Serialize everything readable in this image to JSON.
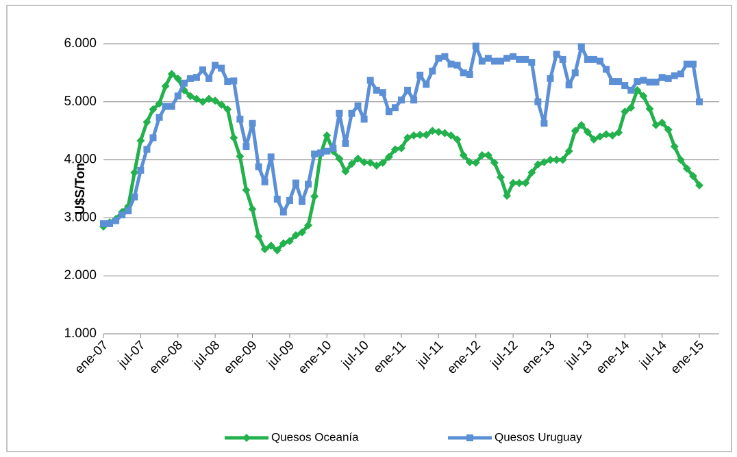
{
  "chart_data": {
    "type": "line",
    "y_label": "U$S/Ton",
    "categories": [
      "ene-07",
      null,
      null,
      null,
      null,
      null,
      "jul-07",
      null,
      null,
      null,
      null,
      null,
      "ene-08",
      null,
      null,
      null,
      null,
      null,
      "jul-08",
      null,
      null,
      null,
      null,
      null,
      "ene-09",
      null,
      null,
      null,
      null,
      null,
      "jul-09",
      null,
      null,
      null,
      null,
      null,
      "ene-10",
      null,
      null,
      null,
      null,
      null,
      "jul-10",
      null,
      null,
      null,
      null,
      null,
      "ene-11",
      null,
      null,
      null,
      null,
      null,
      "jul-11",
      null,
      null,
      null,
      null,
      null,
      "ene-12",
      null,
      null,
      null,
      null,
      null,
      "jul-12",
      null,
      null,
      null,
      null,
      null,
      "ene-13",
      null,
      null,
      null,
      null,
      null,
      "jul-13",
      null,
      null,
      null,
      null,
      null,
      "ene-14",
      null,
      null,
      null,
      null,
      null,
      "jul-14",
      null,
      null,
      null,
      null,
      null,
      "ene-15"
    ],
    "series": [
      {
        "name": "Quesos Oceanía",
        "color": "#22b14c",
        "marker": "diamond",
        "values": [
          2850,
          2920,
          2980,
          3100,
          3200,
          3780,
          4330,
          4650,
          4870,
          4970,
          5270,
          5480,
          5400,
          5200,
          5100,
          5050,
          5000,
          5050,
          5020,
          4950,
          4870,
          4380,
          4060,
          3480,
          3150,
          2680,
          2460,
          2520,
          2440,
          2560,
          2600,
          2700,
          2750,
          2870,
          3370,
          4100,
          4420,
          4150,
          4020,
          3800,
          3930,
          4020,
          3960,
          3950,
          3900,
          3950,
          4050,
          4180,
          4200,
          4380,
          4420,
          4430,
          4430,
          4500,
          4480,
          4460,
          4420,
          4350,
          4080,
          3960,
          3950,
          4080,
          4080,
          3950,
          3700,
          3380,
          3600,
          3600,
          3600,
          3780,
          3920,
          3960,
          4000,
          4000,
          4000,
          4150,
          4500,
          4600,
          4480,
          4350,
          4400,
          4440,
          4420,
          4470,
          4830,
          4900,
          5200,
          5100,
          4880,
          4600,
          4640,
          4520,
          4230,
          4000,
          3850,
          3720,
          3560
        ]
      },
      {
        "name": "Quesos Uruguay",
        "color": "#5b8fd6",
        "marker": "square",
        "values": [
          2900,
          2900,
          2950,
          3050,
          3120,
          3360,
          3820,
          4180,
          4380,
          4730,
          4920,
          4920,
          5100,
          5320,
          5400,
          5420,
          5550,
          5400,
          5630,
          5580,
          5350,
          5360,
          4700,
          4230,
          4630,
          3880,
          3620,
          4050,
          3320,
          3100,
          3300,
          3600,
          3280,
          3580,
          4100,
          4120,
          4150,
          4200,
          4800,
          4280,
          4800,
          4930,
          4700,
          5370,
          5200,
          5160,
          4830,
          4900,
          5030,
          5200,
          5030,
          5460,
          5300,
          5530,
          5750,
          5780,
          5650,
          5630,
          5500,
          5470,
          5960,
          5700,
          5750,
          5700,
          5700,
          5750,
          5780,
          5730,
          5730,
          5680,
          5000,
          4630,
          5400,
          5820,
          5730,
          5290,
          5500,
          5950,
          5730,
          5730,
          5700,
          5560,
          5350,
          5350,
          5280,
          5200,
          5350,
          5370,
          5340,
          5340,
          5420,
          5400,
          5450,
          5480,
          5650,
          5650,
          5000
        ]
      }
    ],
    "ylim": [
      1000,
      6000
    ],
    "yticks": [
      {
        "value": 1000,
        "label": "1.000"
      },
      {
        "value": 2000,
        "label": "2.000"
      },
      {
        "value": 3000,
        "label": "3.000"
      },
      {
        "value": 4000,
        "label": "4.000"
      },
      {
        "value": 5000,
        "label": "5.000"
      },
      {
        "value": 6000,
        "label": "6.000"
      }
    ],
    "grid": true,
    "legend": "bottom"
  }
}
